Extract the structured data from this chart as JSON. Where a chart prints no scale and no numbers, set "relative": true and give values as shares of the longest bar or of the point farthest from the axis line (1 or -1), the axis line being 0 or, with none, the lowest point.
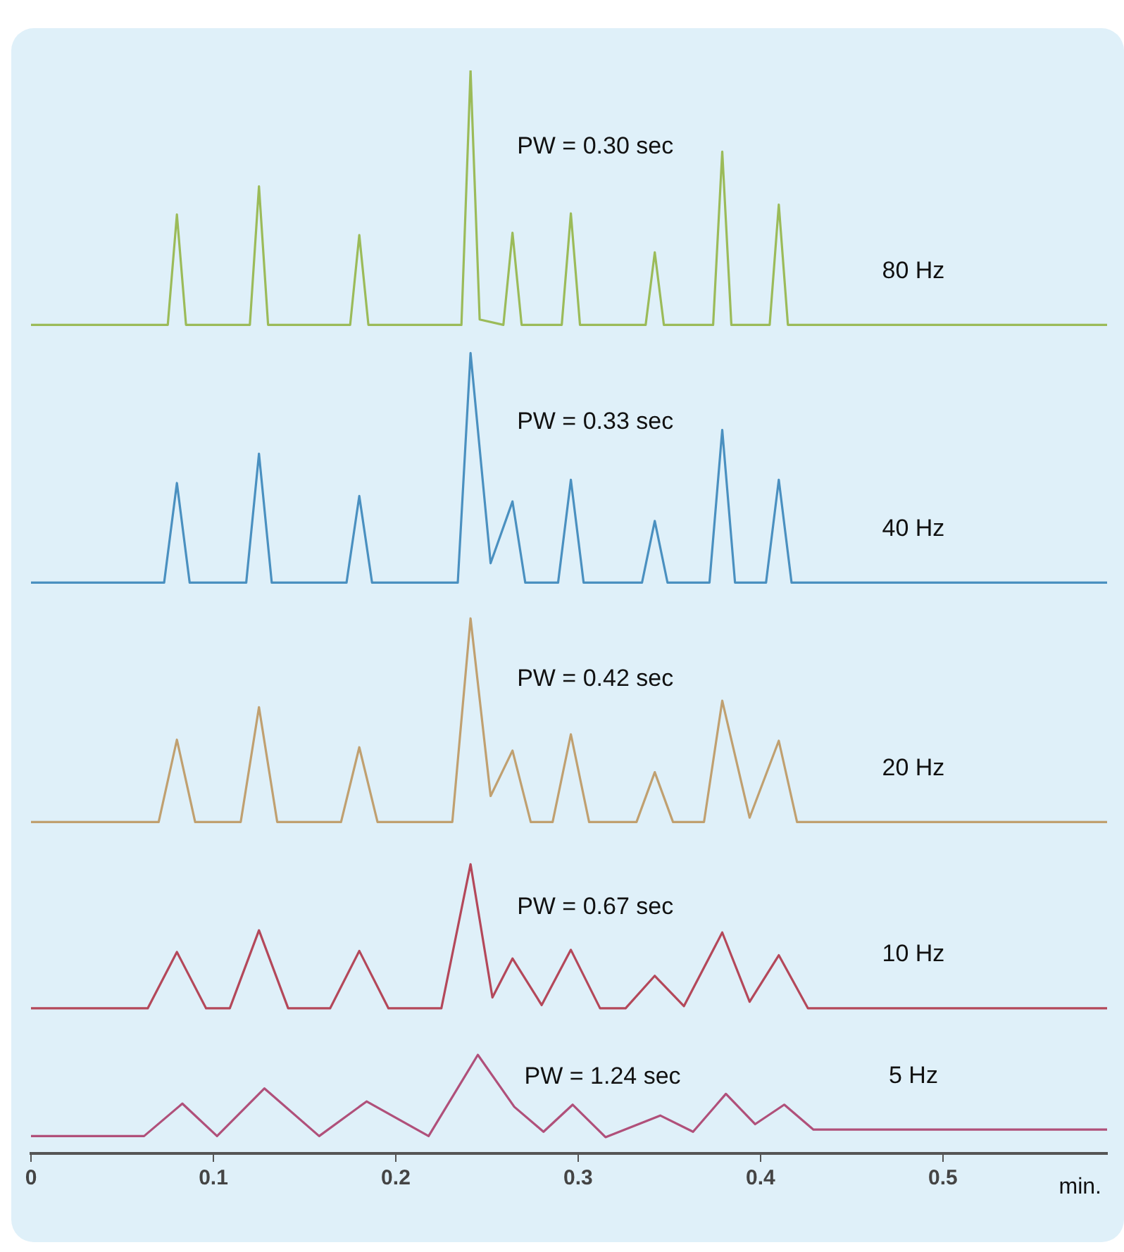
{
  "chart_data": {
    "type": "line",
    "relative": true,
    "xlabel": "min.",
    "xlim": [
      0,
      0.59
    ],
    "xticks": [
      0,
      0.1,
      0.2,
      0.3,
      0.4,
      0.5
    ],
    "grid": false,
    "marker": "none",
    "line_style": "solid",
    "series": [
      {
        "name": "80 Hz",
        "color": "#9bbb59",
        "x": [
          0,
          0.075,
          0.08,
          0.085,
          0.12,
          0.125,
          0.13,
          0.175,
          0.18,
          0.185,
          0.236,
          0.241,
          0.246,
          0.259,
          0.264,
          0.269,
          0.291,
          0.296,
          0.301,
          0.337,
          0.342,
          0.347,
          0.374,
          0.379,
          0.384,
          0.405,
          0.41,
          0.415,
          0.59
        ],
        "values": [
          0.765,
          0.765,
          0.867,
          0.765,
          0.765,
          0.893,
          0.765,
          0.765,
          0.848,
          0.765,
          0.765,
          1.0,
          0.77,
          0.765,
          0.85,
          0.765,
          0.765,
          0.868,
          0.765,
          0.765,
          0.832,
          0.765,
          0.765,
          0.925,
          0.765,
          0.765,
          0.876,
          0.765,
          0.765
        ]
      },
      {
        "name": "40 Hz",
        "color": "#4a90c0",
        "x": [
          0,
          0.073,
          0.08,
          0.087,
          0.118,
          0.125,
          0.132,
          0.173,
          0.18,
          0.187,
          0.234,
          0.241,
          0.252,
          0.264,
          0.271,
          0.289,
          0.296,
          0.303,
          0.335,
          0.342,
          0.349,
          0.372,
          0.379,
          0.386,
          0.403,
          0.41,
          0.417,
          0.59
        ],
        "values": [
          0.527,
          0.527,
          0.619,
          0.527,
          0.527,
          0.646,
          0.527,
          0.527,
          0.607,
          0.527,
          0.527,
          0.739,
          0.545,
          0.602,
          0.527,
          0.527,
          0.622,
          0.527,
          0.527,
          0.584,
          0.527,
          0.527,
          0.668,
          0.527,
          0.527,
          0.622,
          0.527,
          0.527
        ]
      },
      {
        "name": "20 Hz",
        "color": "#c0a070",
        "x": [
          0,
          0.07,
          0.08,
          0.09,
          0.115,
          0.125,
          0.135,
          0.17,
          0.18,
          0.19,
          0.231,
          0.241,
          0.252,
          0.264,
          0.274,
          0.286,
          0.296,
          0.306,
          0.332,
          0.342,
          0.352,
          0.369,
          0.379,
          0.394,
          0.41,
          0.42,
          0.59
        ],
        "values": [
          0.306,
          0.306,
          0.382,
          0.306,
          0.306,
          0.412,
          0.306,
          0.306,
          0.375,
          0.306,
          0.306,
          0.494,
          0.33,
          0.372,
          0.306,
          0.306,
          0.387,
          0.306,
          0.306,
          0.352,
          0.306,
          0.306,
          0.418,
          0.31,
          0.381,
          0.306,
          0.306
        ]
      },
      {
        "name": "10 Hz",
        "color": "#b4485a",
        "x": [
          0,
          0.064,
          0.08,
          0.096,
          0.109,
          0.125,
          0.141,
          0.164,
          0.18,
          0.196,
          0.225,
          0.241,
          0.253,
          0.264,
          0.28,
          0.296,
          0.312,
          0.326,
          0.342,
          0.358,
          0.379,
          0.394,
          0.41,
          0.426,
          0.59
        ],
        "values": [
          0.134,
          0.134,
          0.186,
          0.134,
          0.134,
          0.206,
          0.134,
          0.134,
          0.187,
          0.134,
          0.134,
          0.267,
          0.144,
          0.18,
          0.137,
          0.188,
          0.134,
          0.134,
          0.164,
          0.136,
          0.204,
          0.14,
          0.183,
          0.134,
          0.134
        ]
      },
      {
        "name": "5 Hz",
        "color": "#b0507a",
        "x": [
          0,
          0.062,
          0.083,
          0.102,
          0.128,
          0.158,
          0.184,
          0.218,
          0.245,
          0.265,
          0.281,
          0.297,
          0.315,
          0.345,
          0.363,
          0.381,
          0.397,
          0.413,
          0.429,
          0.59
        ],
        "values": [
          0.016,
          0.016,
          0.046,
          0.016,
          0.06,
          0.016,
          0.048,
          0.016,
          0.091,
          0.043,
          0.02,
          0.045,
          0.015,
          0.035,
          0.02,
          0.055,
          0.027,
          0.045,
          0.022,
          0.022
        ]
      }
    ],
    "annotations": [
      "PW = 0.30 sec",
      "PW = 0.33 sec",
      "PW = 0.42 sec",
      "PW = 0.67 sec",
      "PW = 1.24 sec"
    ]
  }
}
